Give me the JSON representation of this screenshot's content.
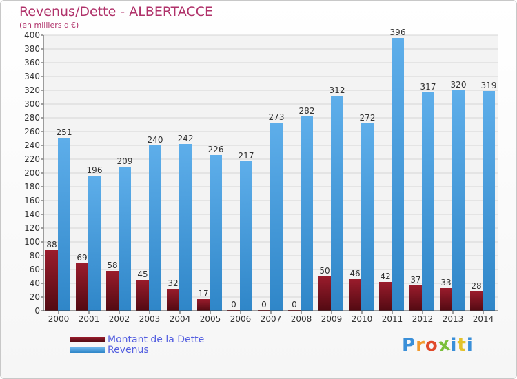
{
  "header": {
    "title": "Revenus/Dette - ALBERTACCE",
    "subtitle": "(en milliers d'€)"
  },
  "chart_data": {
    "type": "bar",
    "categories": [
      "2000",
      "2001",
      "2002",
      "2003",
      "2004",
      "2005",
      "2006",
      "2007",
      "2008",
      "2009",
      "2010",
      "2011",
      "2012",
      "2013",
      "2014"
    ],
    "series": [
      {
        "name": "Montant de la Dette",
        "values": [
          88,
          69,
          58,
          45,
          32,
          17,
          0,
          0,
          0,
          50,
          46,
          42,
          37,
          33,
          28
        ],
        "color": "#7a1420"
      },
      {
        "name": "Revenus",
        "values": [
          251,
          196,
          209,
          240,
          242,
          226,
          217,
          273,
          282,
          312,
          272,
          396,
          317,
          320,
          319
        ],
        "color": "#4ba3e3"
      }
    ],
    "ylim": [
      0,
      400
    ],
    "ytick_step": 20,
    "grid": true,
    "legend_position": "bottom-left",
    "data_labels": true
  },
  "legend": {
    "items": [
      {
        "label": "Montant de la Dette",
        "color": "#7a1420"
      },
      {
        "label": "Revenus",
        "color": "#4ba3e3"
      }
    ]
  },
  "logo": {
    "letters": [
      "P",
      "r",
      "o",
      "x",
      "i",
      "t",
      "i"
    ],
    "colors": [
      "#3a8fd8",
      "#f29a2e",
      "#e04a2a",
      "#7abf3a",
      "#3a8fd8",
      "#e3c22a",
      "#3a8fd8"
    ]
  }
}
